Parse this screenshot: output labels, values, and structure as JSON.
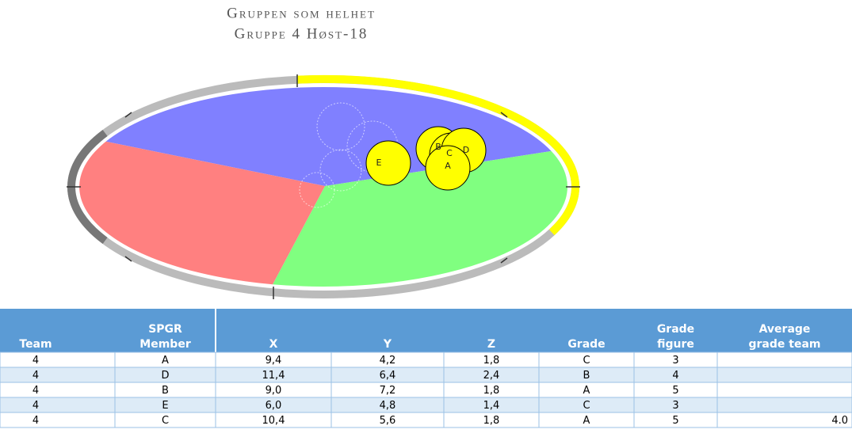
{
  "header": {
    "title": "Gruppen som helhet",
    "subtitle": "Gruppe 4 Høst-18"
  },
  "diagram": {
    "members": [
      "E",
      "B",
      "C",
      "D",
      "A"
    ]
  },
  "table": {
    "columns": [
      "Team",
      "SPGR Member",
      "X",
      "Y",
      "Z",
      "Grade",
      "Grade figure",
      "Average grade team"
    ],
    "rows": [
      [
        4,
        "A",
        "9,4",
        "4,2",
        "1,8",
        "C",
        3,
        null
      ],
      [
        4,
        "D",
        "11,4",
        "6,4",
        "2,4",
        "B",
        4,
        null
      ],
      [
        4,
        "B",
        "9,0",
        "7,2",
        "1,8",
        "A",
        5,
        null
      ],
      [
        4,
        "E",
        "6,0",
        "4,8",
        "1,4",
        "C",
        3,
        null
      ],
      [
        4,
        "C",
        "10,4",
        "5,6",
        "1,8",
        "A",
        5,
        "4.0"
      ]
    ]
  }
}
